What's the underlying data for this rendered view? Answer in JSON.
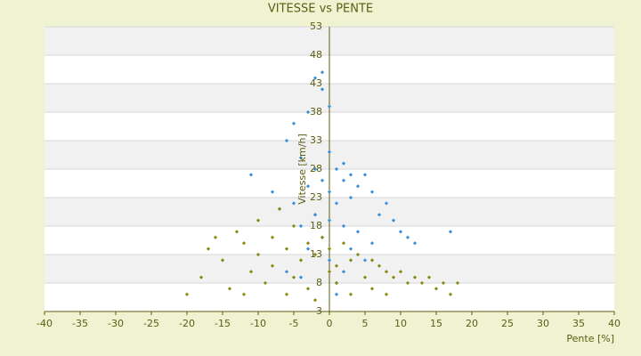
{
  "chart_data": {
    "type": "scatter",
    "title": "VITESSE vs PENTE",
    "x_label": "Pente [%]",
    "y_label": "Vitesse [km/h]",
    "xlim": [
      -40,
      40
    ],
    "xticks": [
      -40,
      -35,
      -30,
      -25,
      -20,
      -15,
      -10,
      -5,
      0,
      5,
      10,
      15,
      20,
      25,
      30,
      35,
      40
    ],
    "ylim": [
      3,
      53
    ],
    "yticks": [
      3,
      8,
      13,
      18,
      23,
      28,
      33,
      38,
      43,
      48,
      53
    ],
    "grid": true,
    "series": [
      {
        "color": "#3d8fd9",
        "x": [
          -11,
          -8,
          -7,
          -6,
          -5,
          -5,
          -4,
          -4,
          -3,
          -3,
          -2,
          -2,
          -2,
          -1,
          -1,
          -1,
          0,
          0,
          0,
          0,
          1,
          1,
          1,
          2,
          2,
          2,
          3,
          3,
          4,
          4,
          5,
          5,
          6,
          6,
          7,
          8,
          9,
          10,
          11,
          12,
          17,
          -1,
          0,
          -3,
          -2,
          2,
          3,
          -6,
          1,
          -4
        ],
        "values": [
          27,
          24,
          21,
          33,
          36,
          22,
          30,
          18,
          25,
          14,
          44,
          28,
          20,
          45,
          26,
          16,
          31,
          24,
          19,
          12,
          28,
          22,
          8,
          26,
          18,
          10,
          23,
          14,
          25,
          17,
          27,
          12,
          24,
          15,
          20,
          22,
          19,
          17,
          16,
          15,
          17,
          42,
          39,
          38,
          20,
          29,
          27,
          10,
          6,
          9
        ]
      },
      {
        "color": "#8c8a12",
        "x": [
          -20,
          -18,
          -17,
          -15,
          -14,
          -13,
          -12,
          -11,
          -10,
          -10,
          -9,
          -8,
          -8,
          -7,
          -6,
          -5,
          -5,
          -4,
          -3,
          -3,
          -2,
          -1,
          0,
          0,
          1,
          1,
          2,
          3,
          4,
          5,
          6,
          6,
          7,
          8,
          9,
          10,
          11,
          12,
          13,
          14,
          15,
          16,
          17,
          18,
          -16,
          -12,
          -6,
          -2,
          3,
          8
        ],
        "values": [
          6,
          9,
          14,
          12,
          7,
          17,
          15,
          10,
          19,
          13,
          8,
          16,
          11,
          21,
          14,
          18,
          9,
          12,
          15,
          7,
          13,
          16,
          10,
          14,
          11,
          8,
          15,
          12,
          13,
          9,
          12,
          7,
          11,
          10,
          9,
          10,
          8,
          9,
          8,
          9,
          7,
          8,
          6,
          8,
          16,
          6,
          6,
          5,
          6,
          6
        ]
      }
    ]
  }
}
